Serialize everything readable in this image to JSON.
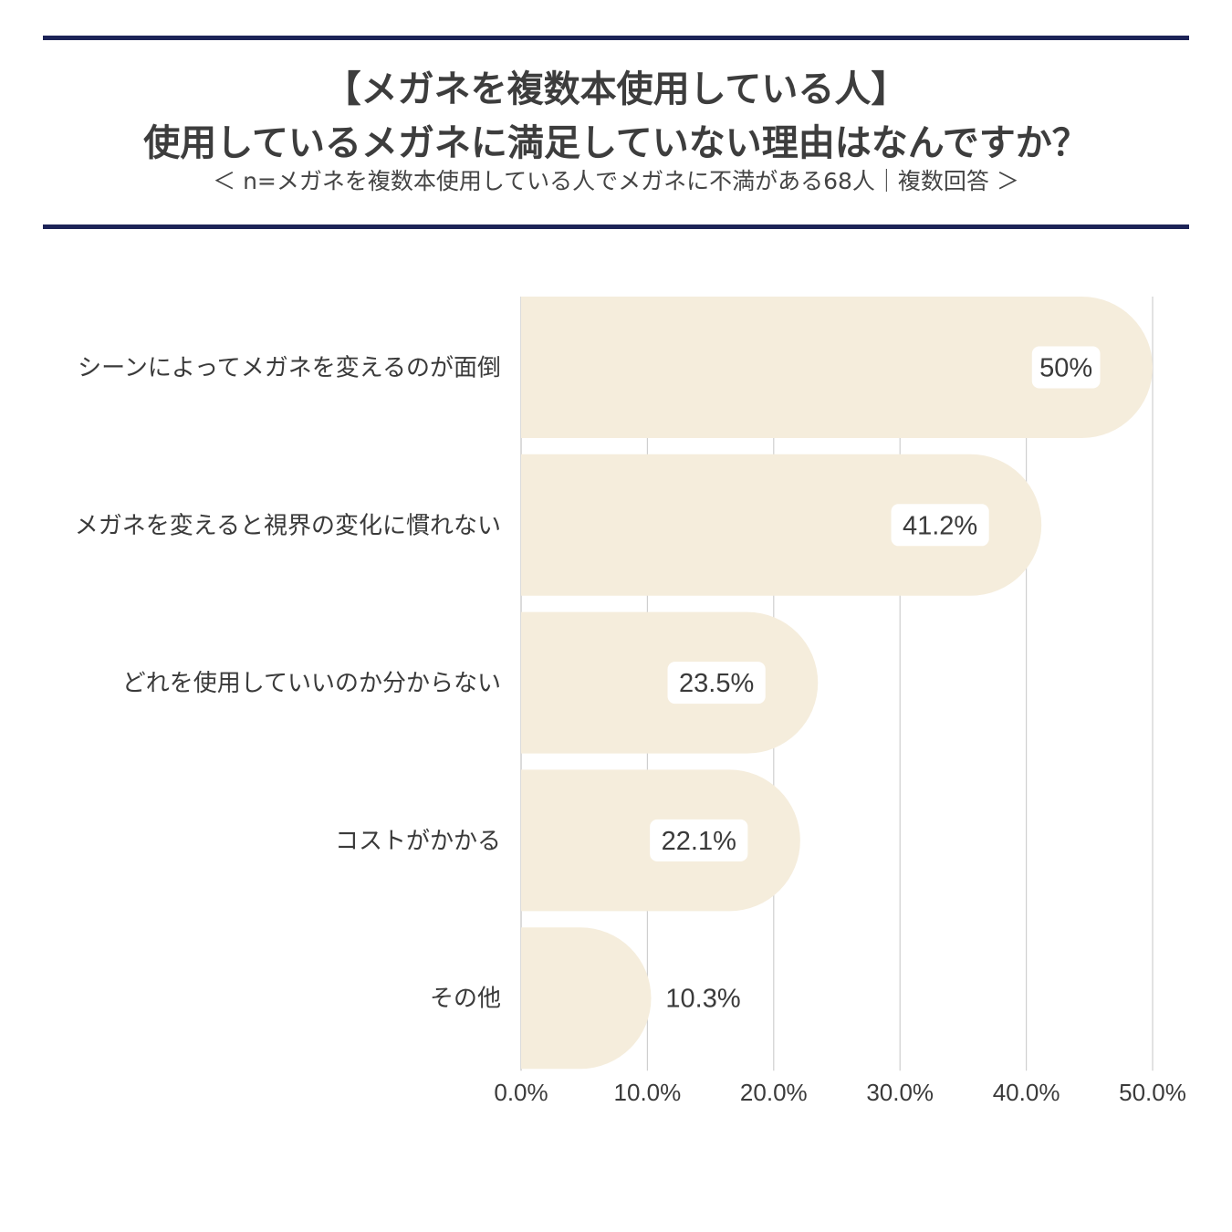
{
  "header": {
    "title_line1": "【メガネを複数本使用している人】",
    "title_line2": "使用しているメガネに満足していない理由はなんですか？",
    "subtitle": "＜ n=メガネを複数本使用している人でメガネに不満がある68人｜複数回答 ＞",
    "rule_color": "#1c2357"
  },
  "chart_data": {
    "type": "bar",
    "orientation": "horizontal",
    "categories": [
      "シーンによってメガネを変えるのが面倒",
      "メガネを変えると視界の変化に慣れない",
      "どれを使用していいのか分からない",
      "コストがかかる",
      "その他"
    ],
    "values": [
      50,
      41.2,
      23.5,
      22.1,
      10.3
    ],
    "value_labels": [
      "50%",
      "41.2%",
      "23.5%",
      "22.1%",
      "10.3%"
    ],
    "xlim": [
      0,
      50
    ],
    "xticks": [
      0,
      10,
      20,
      30,
      40,
      50
    ],
    "xtick_labels": [
      "0.0%",
      "10.0%",
      "20.0%",
      "30.0%",
      "40.0%",
      "50.0%"
    ],
    "grid": true,
    "bar_color": "#f5eddc",
    "label_box_color": "#ffffff",
    "grid_color": "#cfcfcf"
  }
}
